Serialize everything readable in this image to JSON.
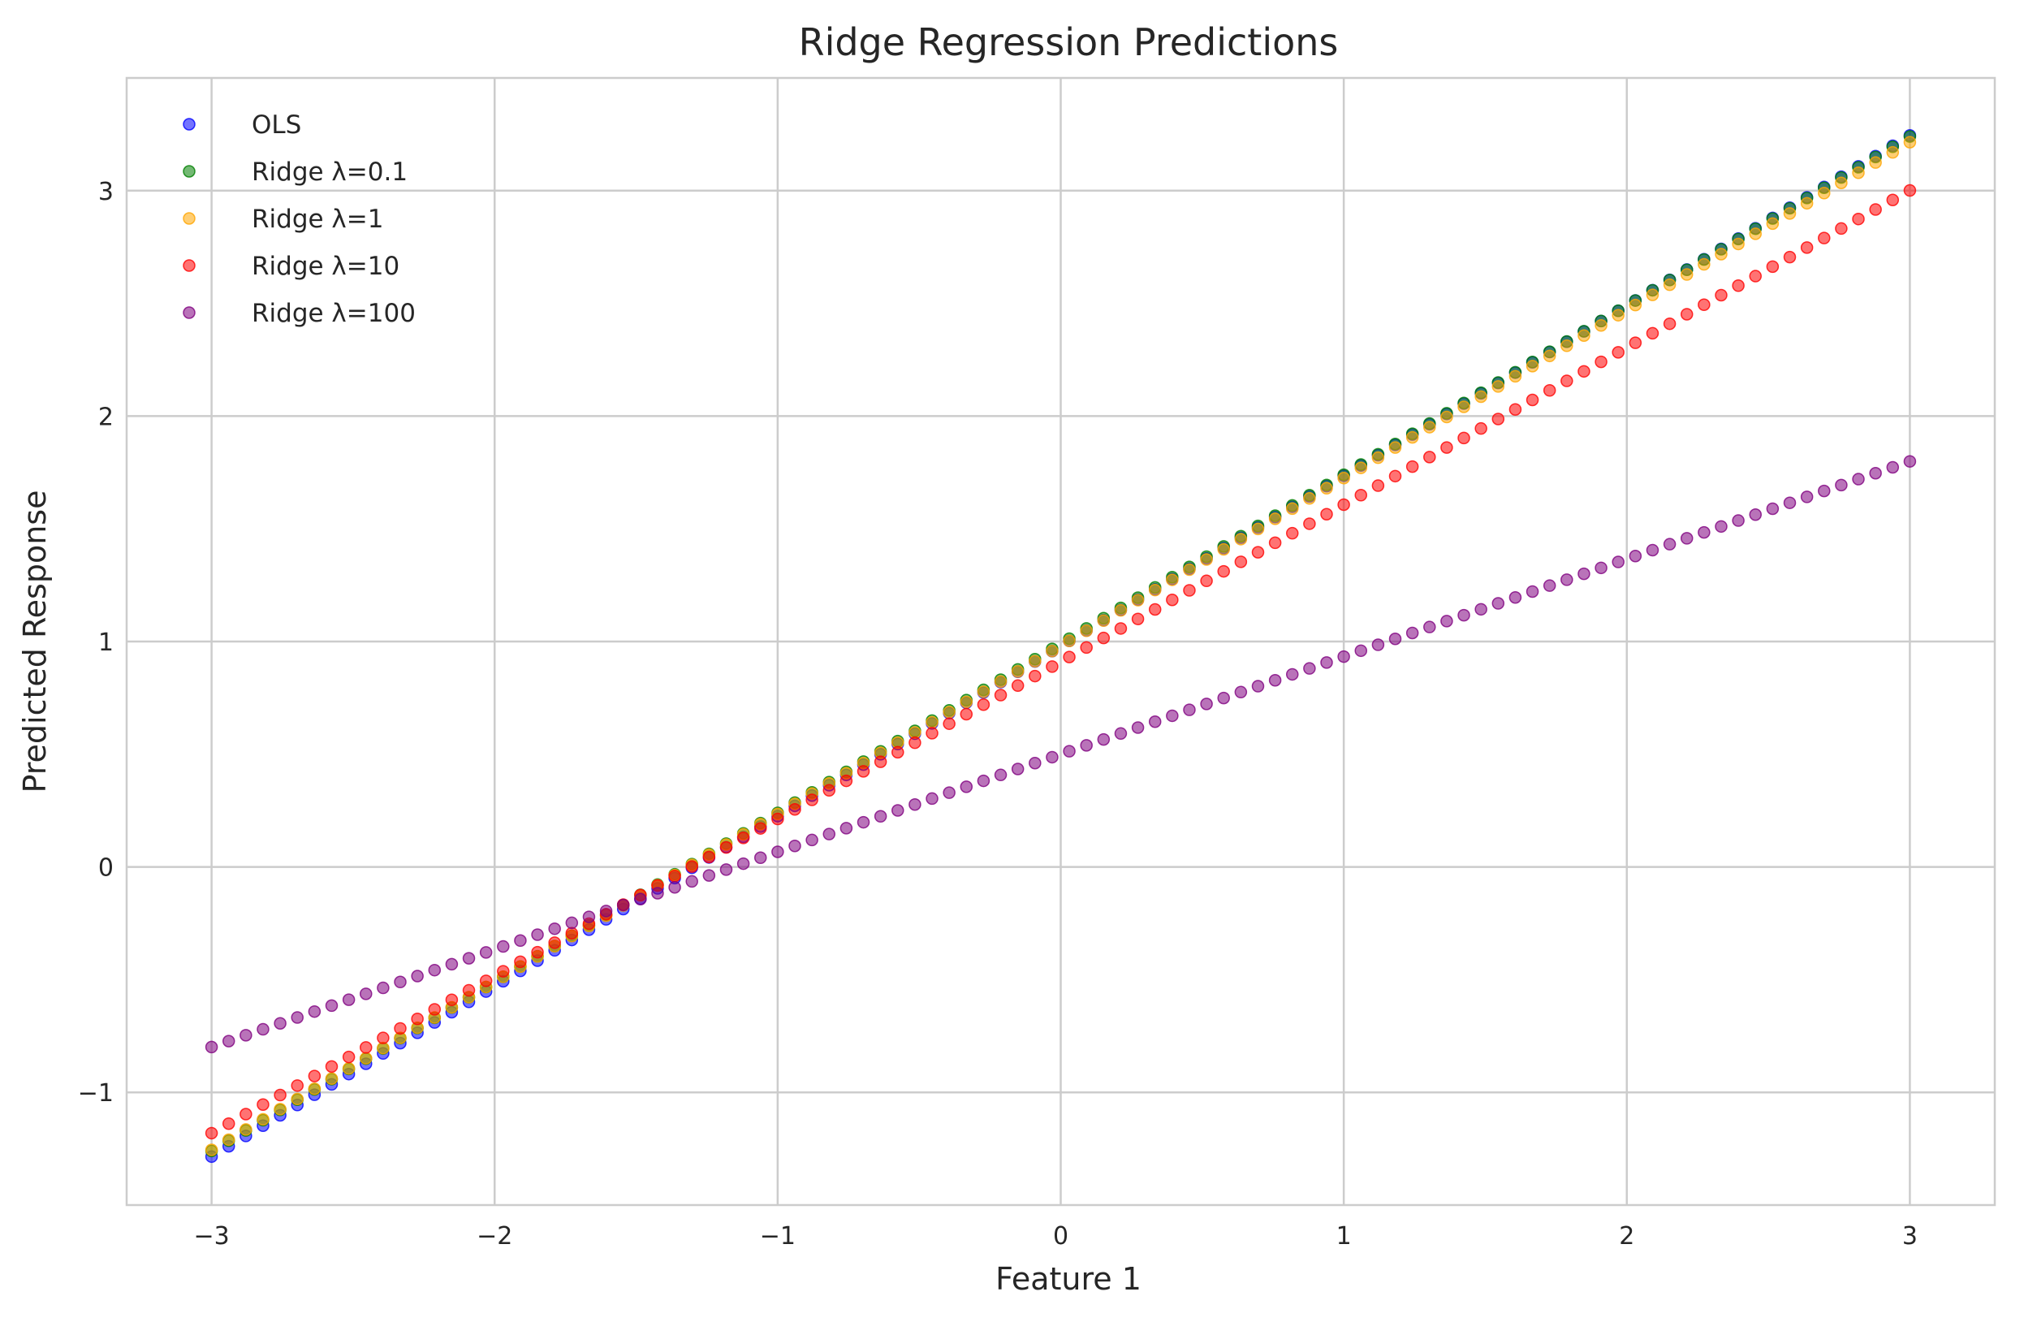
{
  "chart_data": {
    "type": "scatter",
    "title": "Ridge Regression Predictions",
    "xlabel": "Feature 1",
    "ylabel": "Predicted Response",
    "xlim": [
      -3.3,
      3.3
    ],
    "ylim": [
      -1.5,
      3.5
    ],
    "x_ticks": [
      -3,
      -2,
      -1,
      0,
      1,
      2,
      3
    ],
    "x_tick_labels": [
      "−3",
      "−2",
      "−1",
      "0",
      "1",
      "2",
      "3"
    ],
    "y_ticks": [
      -1,
      0,
      1,
      2,
      3
    ],
    "y_tick_labels": [
      "−1",
      "0",
      "1",
      "2",
      "3"
    ],
    "grid": true,
    "legend_position": "upper-left",
    "x_range": {
      "start": -3,
      "end": 3,
      "count": 100
    },
    "series": [
      {
        "name": "OLS",
        "color": "#0000ff",
        "fit": {
          "intercept": 0.98,
          "slope": 0.755
        }
      },
      {
        "name": "Ridge λ=0.1",
        "color": "#008000",
        "fit": {
          "intercept": 0.99,
          "slope": 0.75
        }
      },
      {
        "name": "Ridge λ=1",
        "color": "#ffa500",
        "fit": {
          "intercept": 0.98,
          "slope": 0.745
        }
      },
      {
        "name": "Ridge λ=10",
        "color": "#ff0000",
        "fit": {
          "intercept": 0.91,
          "slope": 0.697
        }
      },
      {
        "name": "Ridge λ=100",
        "color": "#800080",
        "fit": {
          "intercept": 0.5,
          "slope": 0.433
        }
      }
    ]
  }
}
